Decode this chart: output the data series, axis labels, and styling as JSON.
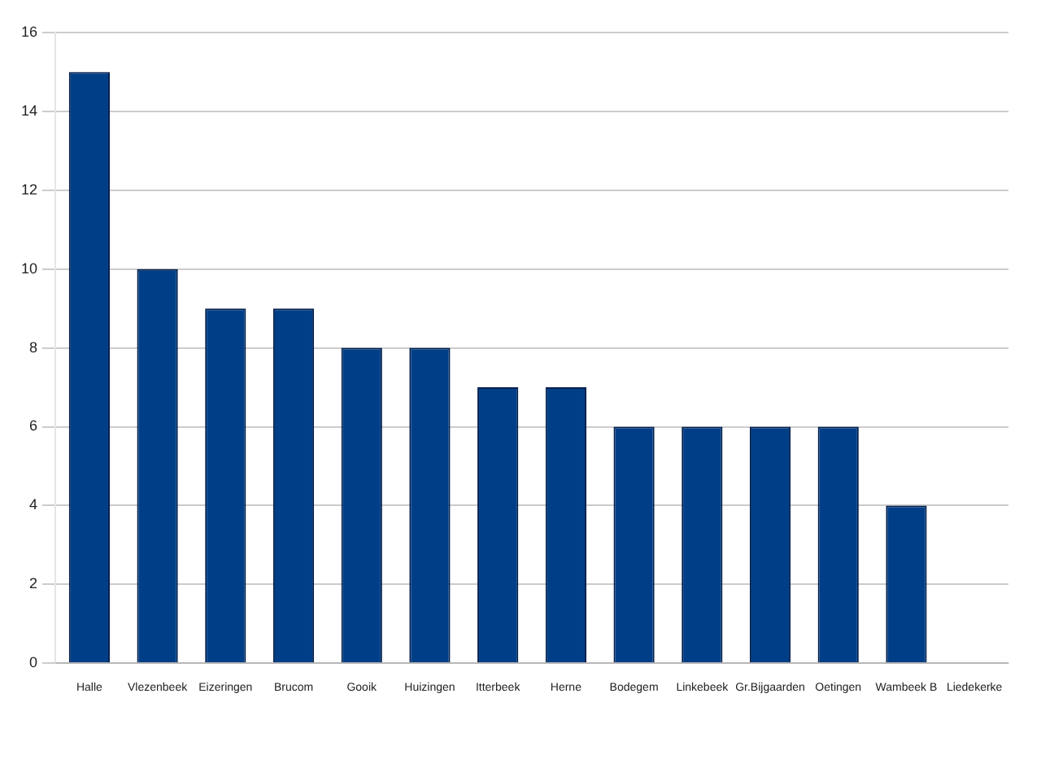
{
  "chart_data": {
    "type": "bar",
    "categories": [
      "Halle",
      "Vlezenbeek",
      "Eizeringen",
      "Brucom",
      "Gooik",
      "Huizingen",
      "Itterbeek",
      "Herne",
      "Bodegem",
      "Linkebeek",
      "Gr.Bijgaarden",
      "Oetingen",
      "Wambeek B",
      "Liedekerke"
    ],
    "values": [
      15,
      10,
      9,
      9,
      8,
      8,
      7,
      7,
      6,
      6,
      6,
      6,
      4,
      0
    ],
    "color": "#003f87",
    "ylim": [
      0,
      16
    ],
    "yticks": [
      0,
      2,
      4,
      6,
      8,
      10,
      12,
      14,
      16
    ],
    "grid": "y",
    "legend": false
  }
}
